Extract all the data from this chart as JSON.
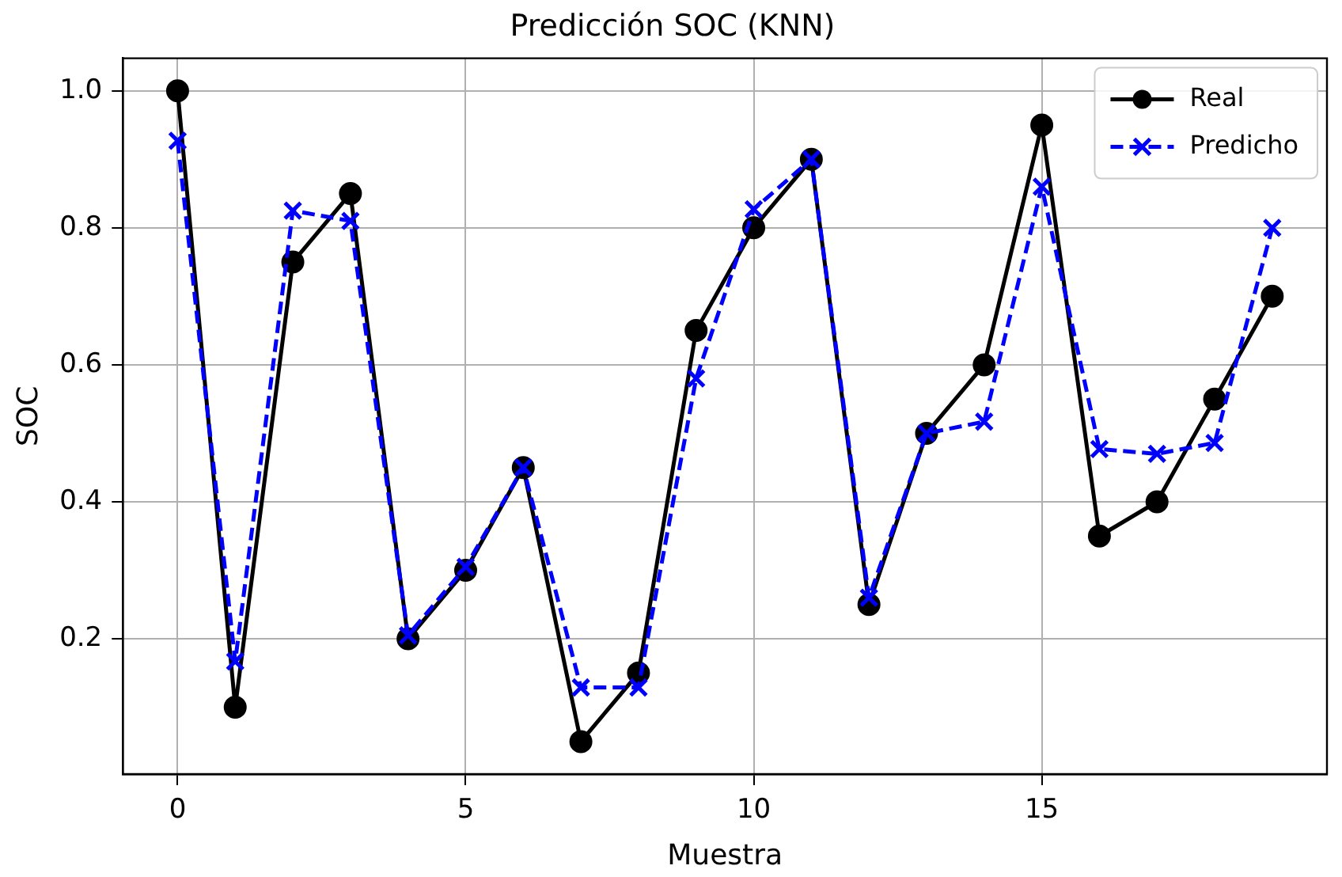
{
  "chart_data": {
    "type": "line",
    "title": "Predicción SOC (KNN)",
    "xlabel": "Muestra",
    "ylabel": "SOC",
    "x": [
      0,
      1,
      2,
      3,
      4,
      5,
      6,
      7,
      8,
      9,
      10,
      11,
      12,
      13,
      14,
      15,
      16,
      17,
      18,
      19
    ],
    "series": [
      {
        "name": "Real",
        "color": "#000000",
        "marker": "circle",
        "line_style": "solid",
        "values": [
          1.0,
          0.1,
          0.75,
          0.85,
          0.2,
          0.3,
          0.45,
          0.05,
          0.15,
          0.65,
          0.8,
          0.9,
          0.25,
          0.5,
          0.6,
          0.95,
          0.35,
          0.4,
          0.55,
          0.7
        ]
      },
      {
        "name": "Predicho",
        "color": "#0000ff",
        "marker": "cross",
        "line_style": "dashed",
        "values": [
          0.927,
          0.167,
          0.825,
          0.81,
          0.205,
          0.305,
          0.45,
          0.129,
          0.129,
          0.58,
          0.827,
          0.9,
          0.26,
          0.5,
          0.517,
          0.86,
          0.477,
          0.47,
          0.486,
          0.8
        ]
      }
    ],
    "xlim": [
      -0.95,
      19.95
    ],
    "xticks": [
      0,
      5,
      10,
      15
    ],
    "ylim": [
      0.0025,
      1.0475
    ],
    "yticks": [
      {
        "value": 0.2,
        "label": "0.2"
      },
      {
        "value": 0.4,
        "label": "0.4"
      },
      {
        "value": 0.6,
        "label": "0.6"
      },
      {
        "value": 0.8,
        "label": "0.8"
      },
      {
        "value": 1.0,
        "label": "1.0"
      }
    ],
    "grid": true,
    "legend": "top right"
  }
}
